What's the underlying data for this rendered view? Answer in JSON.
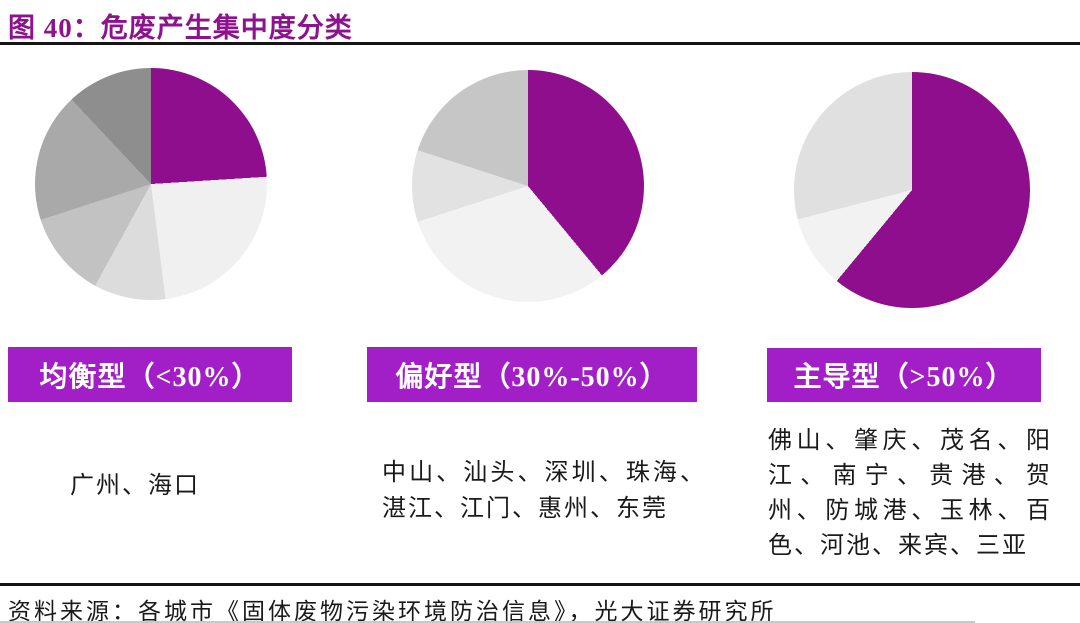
{
  "title": "图 40：危废产生集中度分类",
  "colors": {
    "title_text": "#8E128E",
    "pie_purple": "#8E0E8E",
    "label_box_bg": "#A21FC8",
    "label_box_text": "#FFFFFF",
    "rule": "#141414",
    "body_text": "#1A1A1A"
  },
  "groups": [
    {
      "id": "balanced",
      "label": "均衡型（<30%）",
      "cities": "广州、海口"
    },
    {
      "id": "preference",
      "label": "偏好型（30%-50%）",
      "cities": "中山、汕头、深圳、珠海、湛江、江门、惠州、东莞"
    },
    {
      "id": "dominant",
      "label": "主导型（>50%）",
      "cities": "佛山、肇庆、茂名、阳江、南宁、贵港、贺州、防城港、玉林、百色、河池、来宾、三亚"
    }
  ],
  "footer": "资料来源：各城市《固体废物污染环境防治信息》，光大证券研究所",
  "chart_data": [
    {
      "type": "pie",
      "title": "均衡型（<30%）",
      "note": "no numeric labels or legend shown in figure; values are percents estimated from slice angles, clockwise from 12 o'clock",
      "slices": [
        {
          "label": "largest-city share (purple)",
          "value": 24,
          "color": "#8E0E8E"
        },
        {
          "label": "segment 2",
          "value": 24,
          "color": "#F0F0F0"
        },
        {
          "label": "segment 3",
          "value": 10,
          "color": "#DCDCDC"
        },
        {
          "label": "segment 4",
          "value": 12,
          "color": "#C2C2C2"
        },
        {
          "label": "segment 5",
          "value": 18,
          "color": "#A9A9A9"
        },
        {
          "label": "segment 6",
          "value": 12,
          "color": "#8E8E8E"
        }
      ]
    },
    {
      "type": "pie",
      "title": "偏好型（30%-50%）",
      "note": "values estimated from slice angles, clockwise from 12 o'clock",
      "slices": [
        {
          "label": "largest-city share (purple)",
          "value": 39,
          "color": "#8E0E8E"
        },
        {
          "label": "segment 2",
          "value": 31,
          "color": "#F2F2F2"
        },
        {
          "label": "segment 3",
          "value": 10,
          "color": "#E2E2E2"
        },
        {
          "label": "segment 4",
          "value": 20,
          "color": "#C6C6C6"
        }
      ]
    },
    {
      "type": "pie",
      "title": "主导型（>50%）",
      "note": "values estimated from slice angles, clockwise from 12 o'clock",
      "slices": [
        {
          "label": "largest-city share (purple)",
          "value": 61,
          "color": "#8E0E8E"
        },
        {
          "label": "segment 2",
          "value": 10,
          "color": "#F2F2F2"
        },
        {
          "label": "segment 3",
          "value": 29,
          "color": "#E0E0E0"
        }
      ]
    }
  ]
}
